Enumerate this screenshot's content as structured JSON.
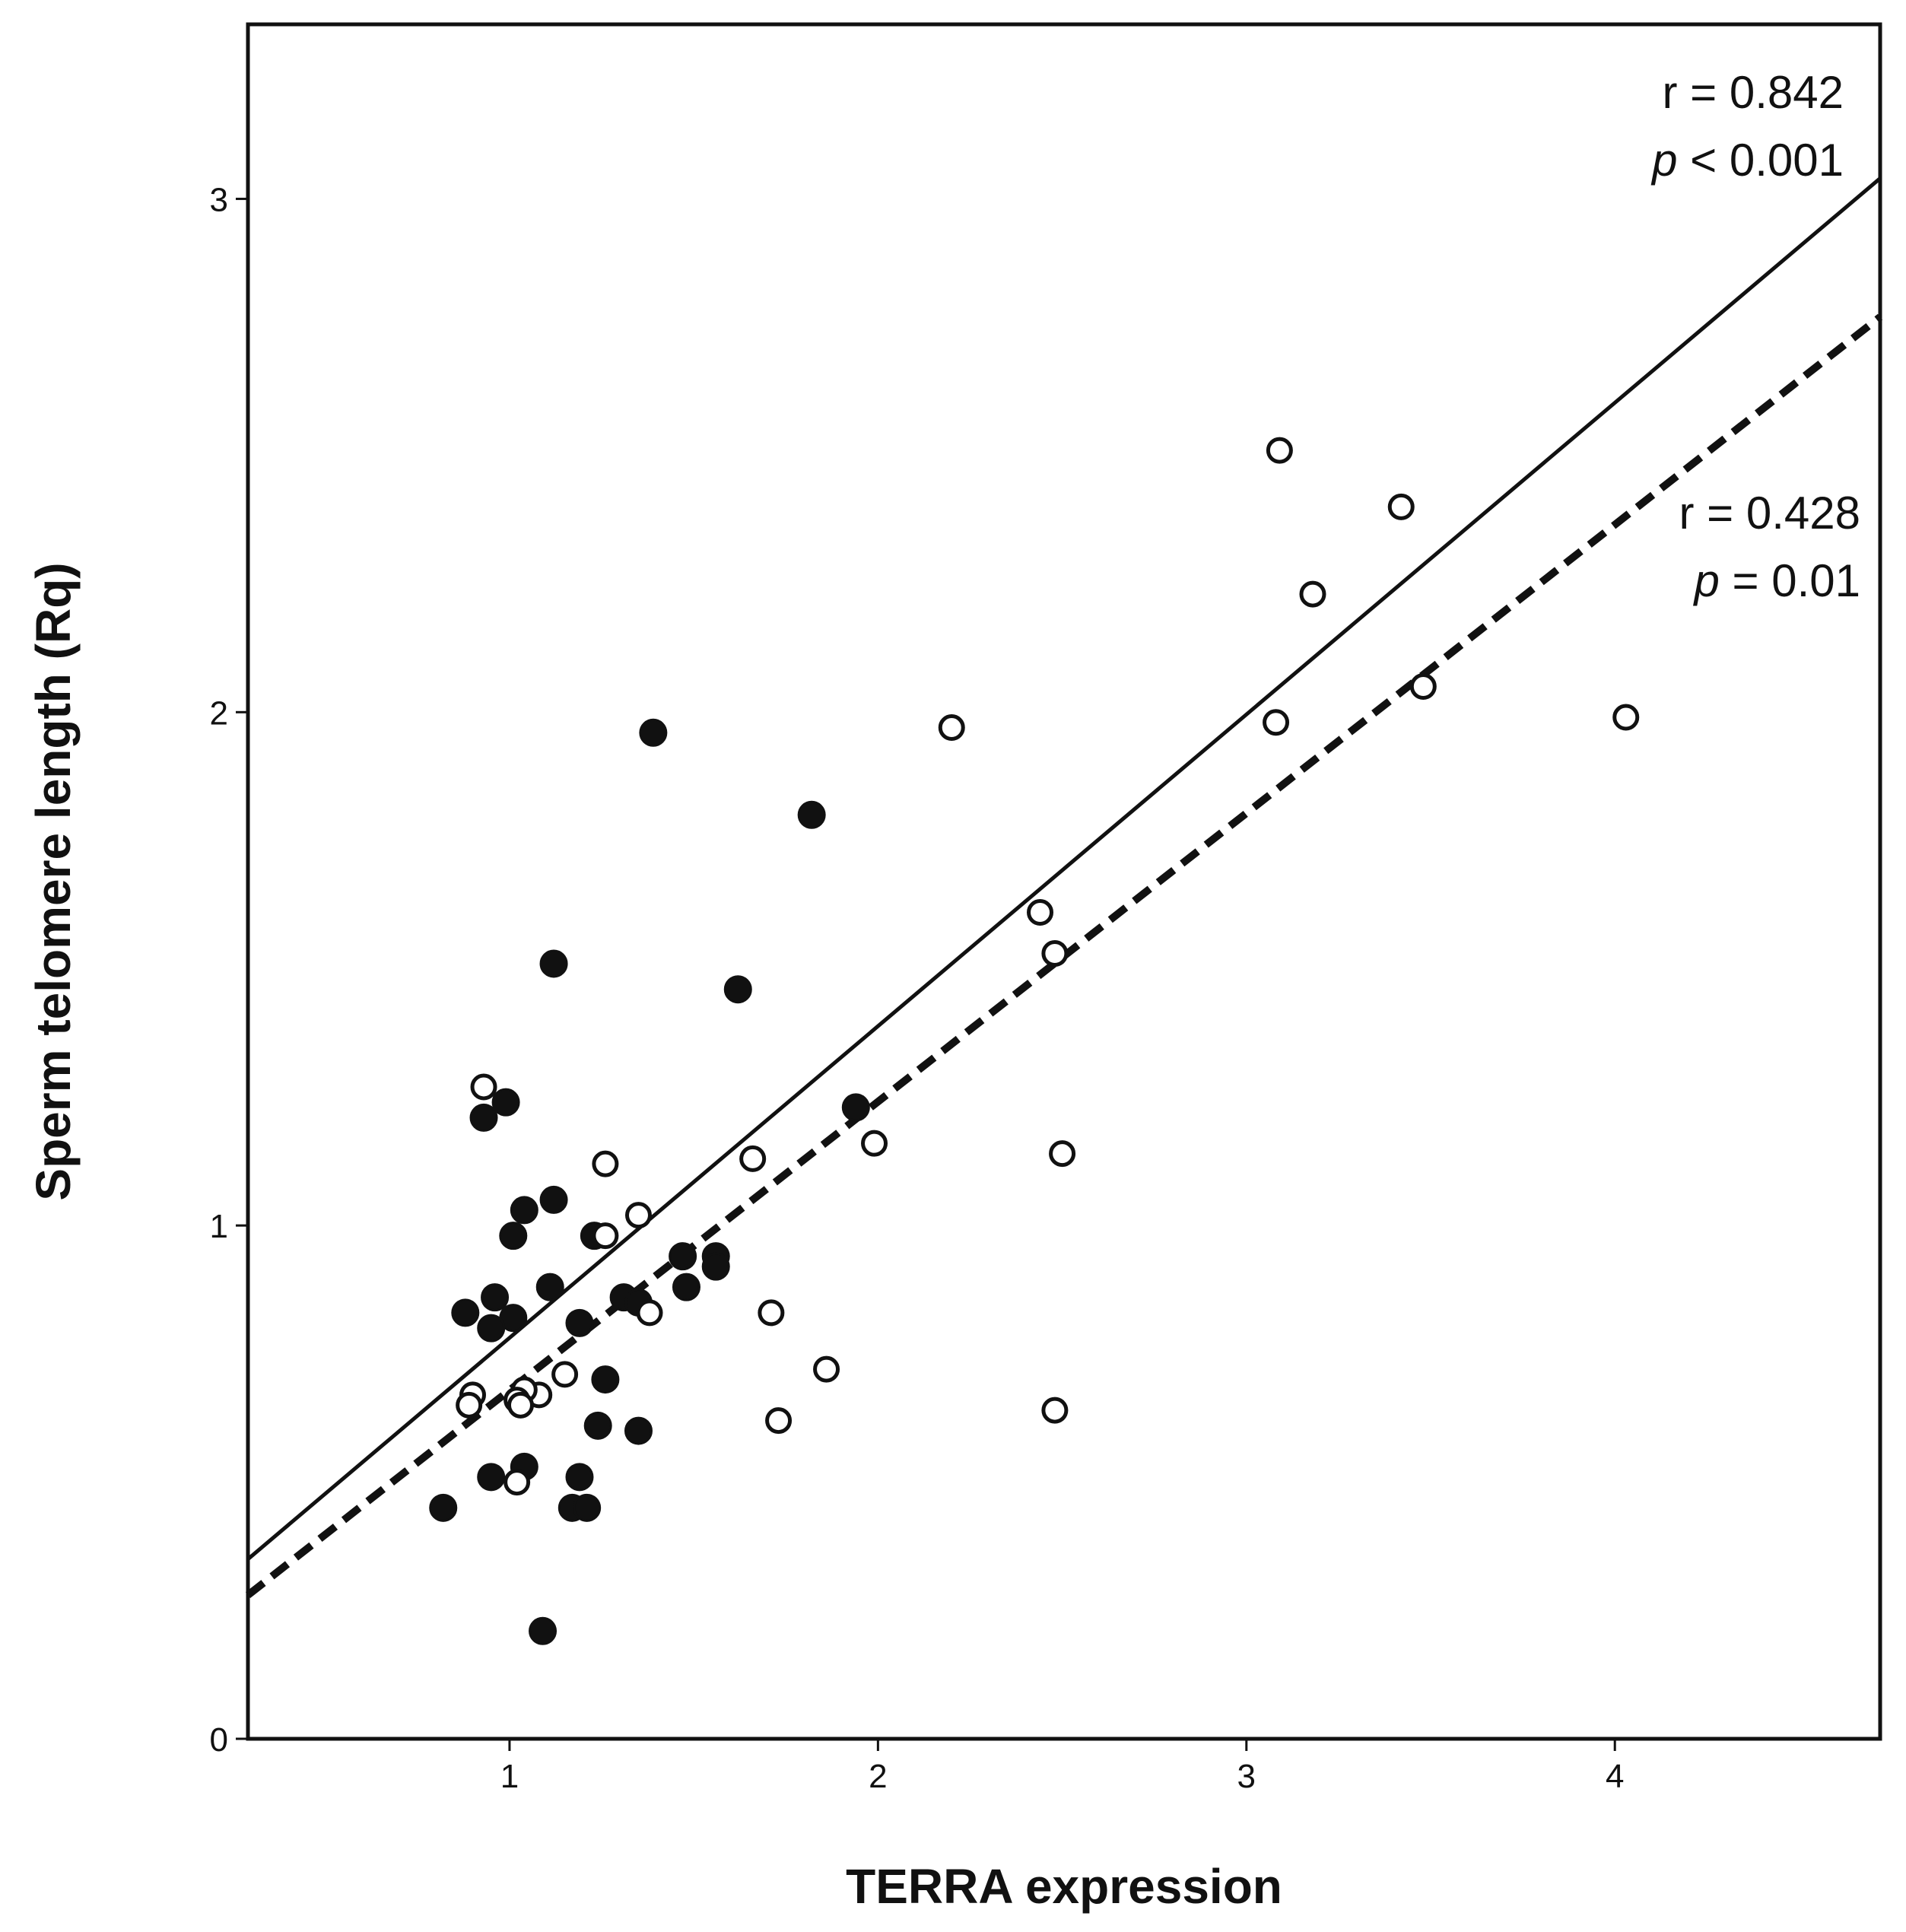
{
  "chart_data": {
    "type": "scatter",
    "title": "",
    "xlabel": "TERRA expression",
    "ylabel": "Sperm telomere length (Rq)",
    "xlim": [
      0.29,
      4.72
    ],
    "ylim": [
      0,
      3.34
    ],
    "xticks": [
      1,
      2,
      3,
      4
    ],
    "yticks": [
      0,
      1,
      2,
      3
    ],
    "grid": false,
    "legend": "none",
    "series": [
      {
        "name": "filled",
        "marker": "filled-circle",
        "points": [
          [
            1.39,
            1.96
          ],
          [
            1.82,
            1.8
          ],
          [
            1.12,
            1.51
          ],
          [
            1.62,
            1.46
          ],
          [
            1.94,
            1.23
          ],
          [
            0.93,
            1.21
          ],
          [
            0.99,
            1.24
          ],
          [
            1.12,
            1.05
          ],
          [
            1.04,
            1.03
          ],
          [
            1.01,
            0.98
          ],
          [
            1.23,
            0.98
          ],
          [
            1.11,
            0.88
          ],
          [
            0.88,
            0.83
          ],
          [
            0.96,
            0.86
          ],
          [
            1.01,
            0.82
          ],
          [
            0.95,
            0.8
          ],
          [
            1.19,
            0.81
          ],
          [
            1.31,
            0.86
          ],
          [
            1.35,
            0.85
          ],
          [
            1.47,
            0.94
          ],
          [
            1.48,
            0.88
          ],
          [
            1.56,
            0.94
          ],
          [
            1.56,
            0.92
          ],
          [
            1.26,
            0.7
          ],
          [
            1.24,
            0.61
          ],
          [
            1.35,
            0.6
          ],
          [
            0.82,
            0.45
          ],
          [
            0.95,
            0.51
          ],
          [
            1.04,
            0.53
          ],
          [
            1.19,
            0.51
          ],
          [
            1.17,
            0.45
          ],
          [
            1.21,
            0.45
          ],
          [
            1.09,
            0.21
          ]
        ]
      },
      {
        "name": "open",
        "marker": "open-circle",
        "points": [
          [
            3.09,
            2.51
          ],
          [
            3.42,
            2.4
          ],
          [
            3.18,
            2.23
          ],
          [
            3.48,
            2.05
          ],
          [
            3.08,
            1.98
          ],
          [
            4.03,
            1.99
          ],
          [
            2.2,
            1.97
          ],
          [
            2.44,
            1.61
          ],
          [
            2.48,
            1.53
          ],
          [
            2.5,
            1.14
          ],
          [
            1.99,
            1.16
          ],
          [
            1.66,
            1.13
          ],
          [
            1.26,
            1.12
          ],
          [
            1.35,
            1.02
          ],
          [
            1.26,
            0.98
          ],
          [
            0.93,
            1.27
          ],
          [
            1.38,
            0.83
          ],
          [
            1.71,
            0.83
          ],
          [
            1.86,
            0.72
          ],
          [
            1.15,
            0.71
          ],
          [
            1.08,
            0.67
          ],
          [
            1.04,
            0.68
          ],
          [
            1.02,
            0.66
          ],
          [
            1.03,
            0.65
          ],
          [
            0.9,
            0.67
          ],
          [
            0.89,
            0.65
          ],
          [
            1.73,
            0.62
          ],
          [
            2.48,
            0.64
          ],
          [
            1.02,
            0.5
          ]
        ]
      }
    ],
    "fit_lines": [
      {
        "name": "solid regression",
        "style": "solid",
        "from": [
          0.29,
          0.35
        ],
        "to": [
          4.72,
          3.04
        ],
        "r_text": "r = 0.842",
        "p_italic": "p",
        "p_rest": " < 0.001"
      },
      {
        "name": "dashed regression",
        "style": "dashed",
        "from": [
          0.29,
          0.28
        ],
        "to": [
          4.72,
          2.77
        ],
        "r_text": "r = 0.428",
        "p_italic": "p",
        "p_rest": " = 0.01"
      }
    ]
  }
}
